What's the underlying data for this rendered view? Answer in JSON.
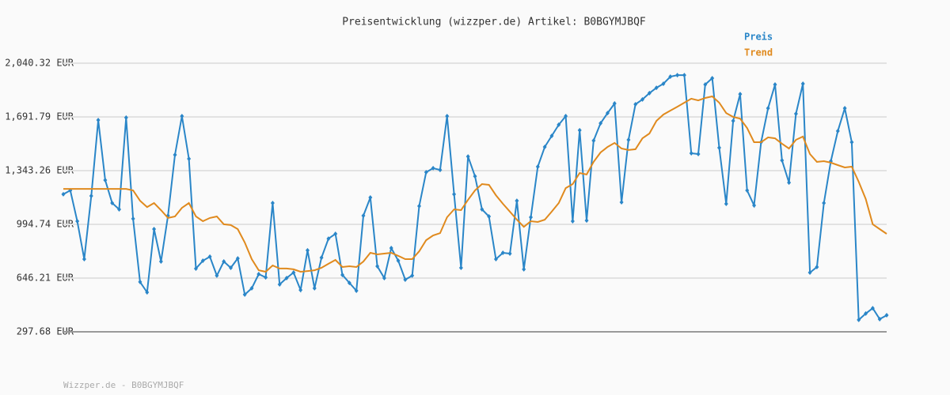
{
  "chart_data": {
    "type": "line",
    "title": "Preisentwicklung (wizzper.de) Artikel: B0BGYMJBQF",
    "footer": "Wizzper.de - B0BGYMJBQF",
    "ylim": [
      297.68,
      2040.32
    ],
    "yticks": [
      {
        "value": 297.68,
        "label": "297.68 EUR"
      },
      {
        "value": 646.21,
        "label": "646.21 EUR"
      },
      {
        "value": 994.74,
        "label": "994.74 EUR"
      },
      {
        "value": 1343.26,
        "label": "1,343.26 EUR"
      },
      {
        "value": 1691.79,
        "label": "1,691.79 EUR"
      },
      {
        "value": 2040.32,
        "label": "2,040.32 EUR"
      }
    ],
    "grid": true,
    "legend": "top-right",
    "series": [
      {
        "name": "Preis",
        "color": "#2a86c8",
        "markers": true,
        "values": [
          1190,
          1215,
          1015,
          769,
          1179,
          1671,
          1282,
          1133,
          1092,
          1687,
          1031,
          621,
          554,
          964,
          754,
          1051,
          1446,
          1697,
          1420,
          708,
          759,
          785,
          662,
          754,
          713,
          774,
          539,
          580,
          672,
          651,
          1133,
          605,
          646,
          682,
          569,
          826,
          580,
          779,
          902,
          933,
          667,
          615,
          564,
          1051,
          1169,
          723,
          646,
          841,
          759,
          636,
          662,
          1113,
          1333,
          1359,
          1348,
          1697,
          1190,
          713,
          1435,
          1307,
          1092,
          1046,
          769,
          810,
          805,
          1148,
          703,
          1041,
          1369,
          1497,
          1569,
          1641,
          1697,
          1015,
          1605,
          1020,
          1538,
          1651,
          1717,
          1779,
          1138,
          1543,
          1774,
          1805,
          1846,
          1881,
          1907,
          1953,
          1963,
          1963,
          1456,
          1451,
          1902,
          1943,
          1492,
          1128,
          1666,
          1840,
          1215,
          1118,
          1528,
          1748,
          1902,
          1410,
          1266,
          1712,
          1907,
          682,
          718,
          1133,
          1405,
          1600,
          1748,
          1528,
          375,
          416,
          451,
          380,
          405
        ]
      },
      {
        "name": "Trend",
        "color": "#e08a1e",
        "markers": false,
        "values": [
          1225,
          1225,
          1225,
          1225,
          1225,
          1225,
          1225,
          1225,
          1225,
          1225,
          1215,
          1148,
          1107,
          1133,
          1087,
          1036,
          1046,
          1102,
          1133,
          1046,
          1015,
          1036,
          1046,
          995,
          990,
          964,
          877,
          769,
          697,
          687,
          728,
          708,
          708,
          703,
          687,
          692,
          697,
          713,
          739,
          764,
          718,
          723,
          718,
          754,
          810,
          800,
          805,
          810,
          790,
          769,
          769,
          820,
          892,
          923,
          938,
          1041,
          1092,
          1087,
          1154,
          1215,
          1256,
          1251,
          1184,
          1128,
          1077,
          1025,
          979,
          1015,
          1010,
          1025,
          1077,
          1133,
          1230,
          1256,
          1328,
          1318,
          1400,
          1461,
          1497,
          1523,
          1487,
          1477,
          1482,
          1553,
          1584,
          1666,
          1707,
          1733,
          1758,
          1784,
          1810,
          1799,
          1815,
          1825,
          1784,
          1717,
          1692,
          1681,
          1620,
          1528,
          1528,
          1559,
          1553,
          1518,
          1487,
          1543,
          1564,
          1451,
          1400,
          1405,
          1395,
          1379,
          1364,
          1369,
          1271,
          1159,
          995,
          964,
          933
        ]
      }
    ]
  }
}
